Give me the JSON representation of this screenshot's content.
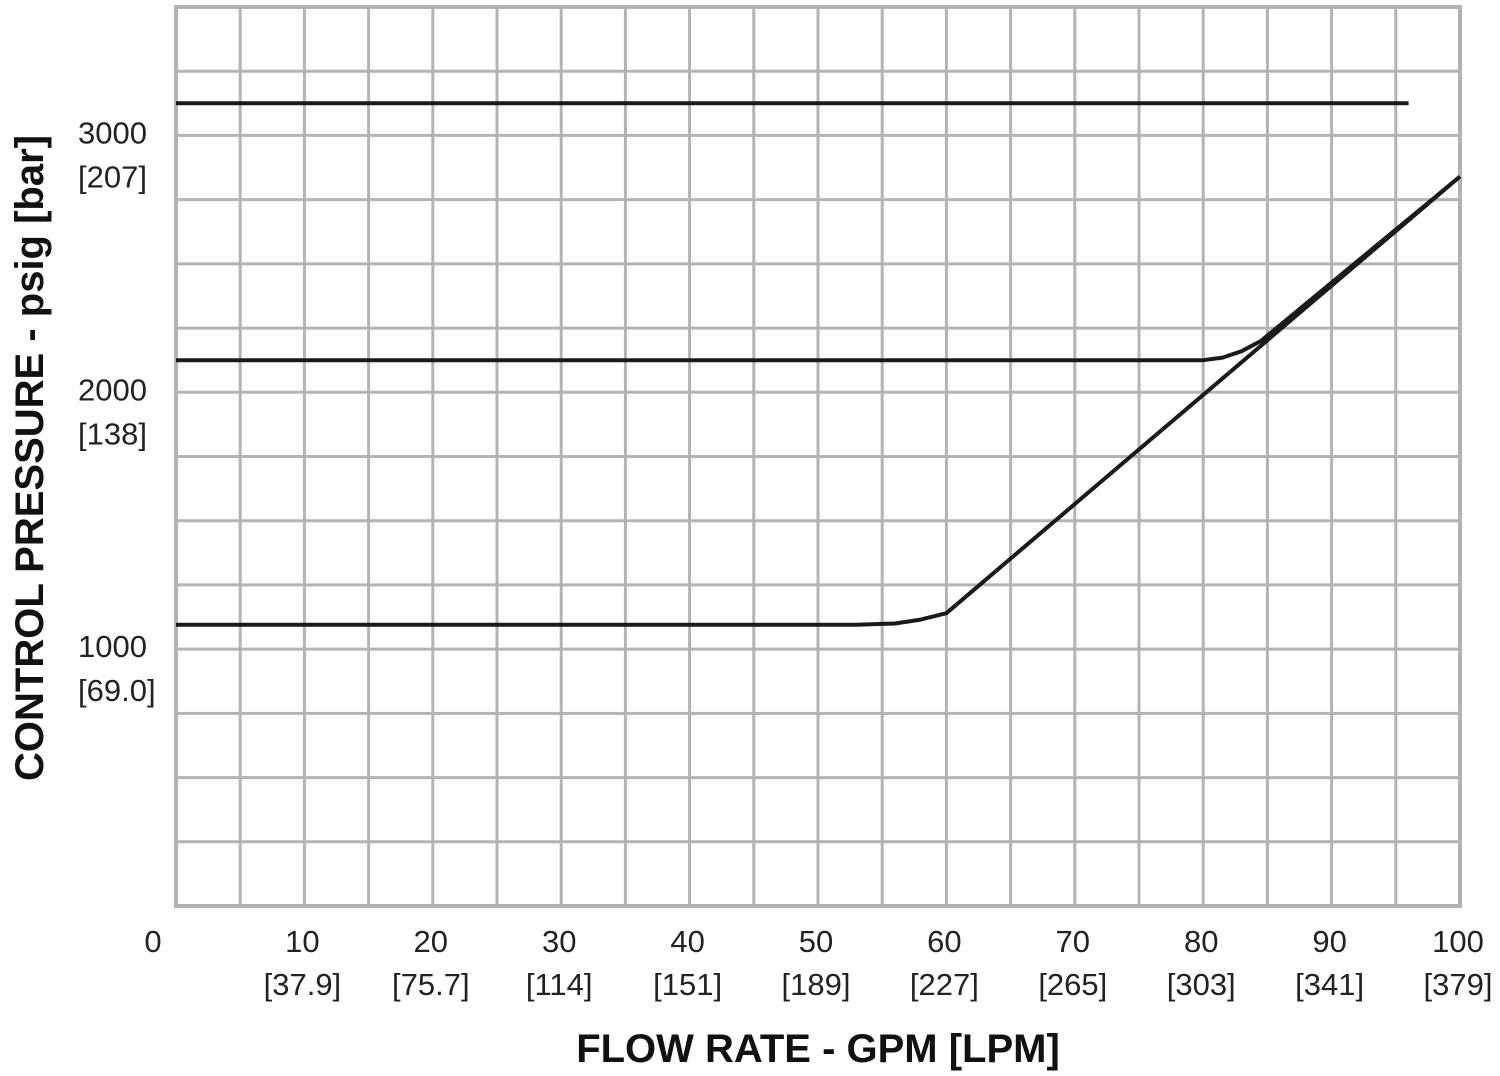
{
  "chart_data": {
    "type": "line",
    "title": "",
    "xlabel": "FLOW RATE - GPM [LPM]",
    "ylabel": "CONTROL PRESSURE - psig [bar]",
    "xlim": [
      0,
      100
    ],
    "ylim": [
      0,
      3500
    ],
    "grid": true,
    "x_ticks": [
      {
        "value": 0,
        "label": "0",
        "sub": ""
      },
      {
        "value": 10,
        "label": "10",
        "sub": "[37.9]"
      },
      {
        "value": 20,
        "label": "20",
        "sub": "[75.7]"
      },
      {
        "value": 30,
        "label": "30",
        "sub": "[114]"
      },
      {
        "value": 40,
        "label": "40",
        "sub": "[151]"
      },
      {
        "value": 50,
        "label": "50",
        "sub": "[189]"
      },
      {
        "value": 60,
        "label": "60",
        "sub": "[227]"
      },
      {
        "value": 70,
        "label": "70",
        "sub": "[265]"
      },
      {
        "value": 80,
        "label": "80",
        "sub": "[303]"
      },
      {
        "value": 90,
        "label": "90",
        "sub": "[341]"
      },
      {
        "value": 100,
        "label": "100",
        "sub": "[379]"
      }
    ],
    "y_ticks": [
      {
        "value": 1000,
        "label": "1000",
        "sub": "[69.0]"
      },
      {
        "value": 2000,
        "label": "2000",
        "sub": "[138]"
      },
      {
        "value": 3000,
        "label": "3000",
        "sub": "[207]"
      }
    ],
    "series": [
      {
        "color": "#1a1a1a",
        "x": [
          0,
          96
        ],
        "y": [
          3125,
          3125
        ]
      },
      {
        "color": "#1a1a1a",
        "x": [
          0,
          80,
          81.5,
          83,
          84.5,
          100
        ],
        "y": [
          2125,
          2125,
          2135,
          2160,
          2200,
          2840
        ]
      },
      {
        "color": "#1a1a1a",
        "x": [
          0,
          53,
          56,
          58,
          60,
          100
        ],
        "y": [
          1095,
          1095,
          1100,
          1115,
          1140,
          2840
        ]
      }
    ]
  }
}
